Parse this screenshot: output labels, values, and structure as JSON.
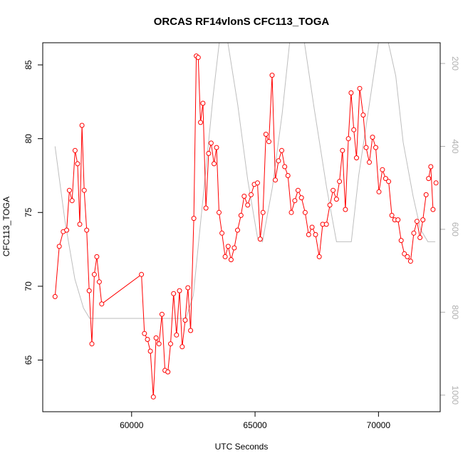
{
  "chart_data": {
    "type": "line",
    "title": "ORCAS RF14vlonS CFC113_TOGA",
    "xlabel": "UTC Seconds",
    "ylabel": "CFC113_TOGA",
    "xlim": [
      56400,
      72500
    ],
    "ylim": [
      61.5,
      86.5
    ],
    "xticks": [
      60000,
      65000,
      70000
    ],
    "yticks": [
      65,
      70,
      75,
      80,
      85
    ],
    "grid": false,
    "legend": "none",
    "colors": {
      "series": "#ff0000",
      "altitude": "#bebebe",
      "axis": "#000000",
      "right_axis": "#b0b0b0"
    },
    "series": [
      {
        "values_x": [
          56900,
          57070,
          57230,
          57370,
          57480,
          57590,
          57710,
          57810,
          57900,
          57990,
          58080,
          58180,
          58280,
          58390,
          58490,
          58590,
          58690,
          58790,
          60400,
          60520,
          60640,
          60760,
          60880,
          60990,
          61110,
          61230,
          61350,
          61470,
          61580,
          61700,
          61820,
          61940,
          62050,
          62170,
          62280,
          62390,
          62520,
          62620,
          62700,
          62790,
          62890,
          63010,
          63120,
          63220,
          63340,
          63440,
          63540,
          63660,
          63790,
          63910,
          64030,
          64160,
          64290,
          64430,
          64560,
          64700,
          64840,
          64970,
          65100,
          65210,
          65320,
          65440,
          65560,
          65690,
          65820,
          65950,
          66080,
          66200,
          66330,
          66470,
          66610,
          66740,
          66880,
          67030,
          67170,
          67310,
          67450,
          67600,
          67740,
          67890,
          68030,
          68160,
          68300,
          68420,
          68540,
          68660,
          68780,
          68890,
          69000,
          69110,
          69240,
          69380,
          69500,
          69630,
          69760,
          69890,
          70020,
          70160,
          70290,
          70410,
          70540,
          70660,
          70790,
          70920,
          71050,
          71170,
          71300,
          71430,
          71560,
          71680,
          71800,
          71930
        ],
        "values_y": [
          69.3,
          72.7,
          73.7,
          73.8,
          76.5,
          75.8,
          79.2,
          78.3,
          74.2,
          80.9,
          76.5,
          73.8,
          69.7,
          66.1,
          70.8,
          72.0,
          70.3,
          68.8,
          70.8,
          66.8,
          66.4,
          65.6,
          62.5,
          66.5,
          66.1,
          68.1,
          64.3,
          64.2,
          66.1,
          69.5,
          66.7,
          69.7,
          65.9,
          67.7,
          69.9,
          67.0,
          74.6,
          85.6,
          85.5,
          81.1,
          82.4,
          75.3,
          79.0,
          79.7,
          78.3,
          79.4,
          75.0,
          73.6,
          72.0,
          72.7,
          71.8,
          72.6,
          73.8,
          74.8,
          76.1,
          75.5,
          76.2,
          76.9,
          77.0,
          73.2,
          75.0,
          80.3,
          79.8,
          84.3,
          77.2,
          78.5,
          79.2,
          78.1,
          77.5,
          75.0,
          75.8,
          76.5,
          76.0,
          75.0,
          73.5,
          74.0,
          73.5,
          72.0,
          74.2,
          74.2,
          75.5,
          76.5,
          75.9,
          77.1,
          79.2,
          75.2,
          80.0,
          83.1,
          80.6,
          78.7,
          83.4,
          81.6,
          79.4,
          78.4,
          80.1,
          79.4,
          76.4,
          77.9,
          77.3,
          77.1,
          74.8,
          74.5,
          74.5,
          73.1,
          72.2,
          72.0,
          71.7,
          73.6,
          74.4,
          73.3,
          74.5,
          76.2
        ]
      },
      {
        "values_x": [
          72030,
          72120,
          72210
        ],
        "values_y": [
          77.3,
          78.1,
          75.2
        ]
      }
    ],
    "extra_points_x": [
      72330
    ],
    "extra_points_y": [
      77.0
    ],
    "right_axis": {
      "ticks": [
        200,
        400,
        600,
        800,
        1000
      ],
      "ylim": [
        1040,
        150
      ],
      "altitude_x": [
        56900,
        57300,
        57700,
        58050,
        58300,
        58700,
        62200,
        62500,
        62900,
        63300,
        63550,
        63900,
        64300,
        64700,
        65100,
        65300,
        65700,
        66100,
        66400,
        66700,
        67000,
        67400,
        67900,
        68300,
        68600,
        68900,
        69200,
        69600,
        70000,
        70400,
        70700,
        71000,
        71400,
        71700,
        72000,
        72300
      ],
      "altitude_y": [
        400,
        580,
        720,
        790,
        815,
        815,
        815,
        760,
        520,
        280,
        150,
        150,
        300,
        480,
        620,
        630,
        500,
        320,
        150,
        150,
        150,
        310,
        500,
        630,
        630,
        630,
        470,
        310,
        150,
        150,
        230,
        390,
        520,
        600,
        630,
        630
      ]
    }
  }
}
